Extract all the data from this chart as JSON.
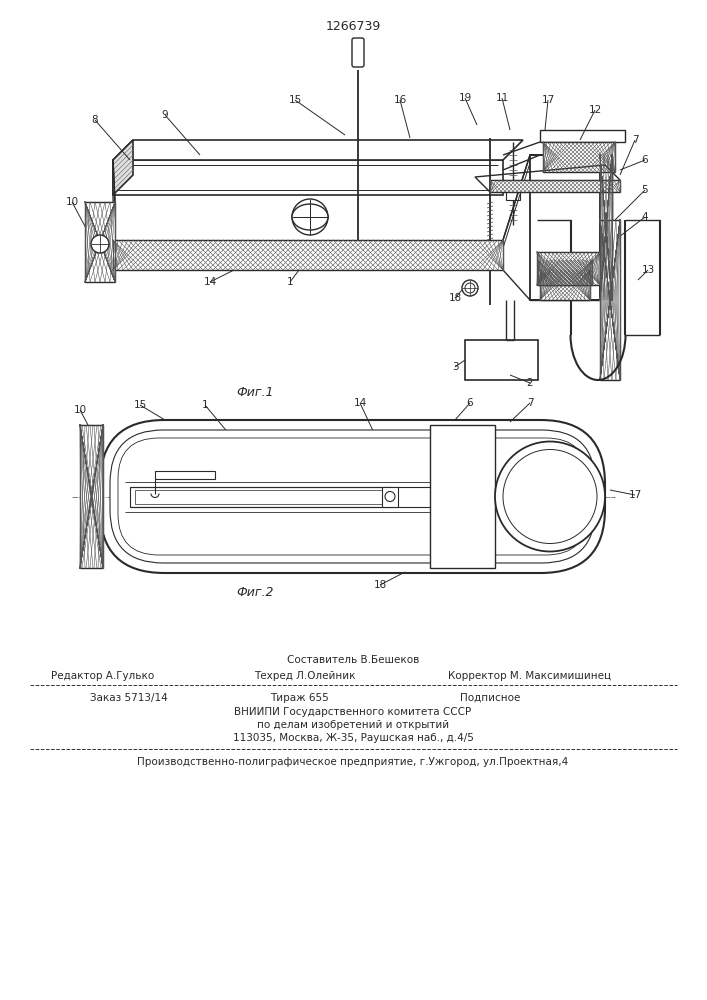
{
  "patent_number": "1266739",
  "fig1_caption": "Фиг.1",
  "fig2_caption": "Фиг.2",
  "footer_sestavitel": "Составитель В.Бешеков",
  "footer_redaktor": "Редактор А.Гулько",
  "footer_tehred": "Техред Л.Олейник",
  "footer_korrektor": "Корректор М. Максимишинец",
  "footer_zakaz": "Заказ 5713/14",
  "footer_tirazh": "Тираж 655",
  "footer_podpisnoe": "Подписное",
  "footer_vnipi": "ВНИИПИ Государственного комитета СССР",
  "footer_dela": "по делам изобретений и открытий",
  "footer_address": "113035, Москва, Ж-35, Раушская наб., д.4/5",
  "footer_predpr": "Производственно-полиграфическое предприятие, г.Ужгород, ул.Проектная,4",
  "bg_color": "#ffffff",
  "line_color": "#2a2a2a"
}
